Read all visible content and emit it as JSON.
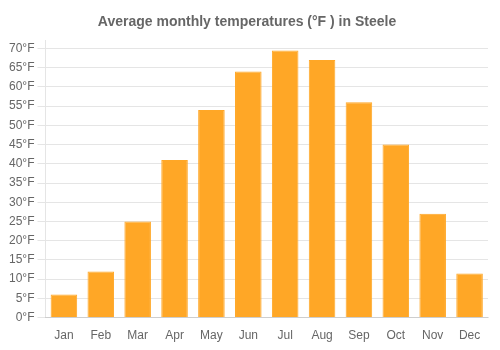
{
  "chart_data": {
    "type": "bar",
    "title": "Average monthly temperatures (°F ) in Steele",
    "categories": [
      "Jan",
      "Feb",
      "Mar",
      "Apr",
      "May",
      "Jun",
      "Jul",
      "Aug",
      "Sep",
      "Oct",
      "Nov",
      "Dec"
    ],
    "values": [
      6,
      12,
      25,
      41,
      54,
      64,
      69.5,
      67,
      56,
      45,
      27,
      11.5
    ],
    "color": "#FFA726",
    "ylim": [
      0,
      72
    ],
    "yticks": [
      {
        "value": 0,
        "label": "0°F"
      },
      {
        "value": 5,
        "label": "5°F"
      },
      {
        "value": 10,
        "label": "10°F"
      },
      {
        "value": 15,
        "label": "15°F"
      },
      {
        "value": 20,
        "label": "20°F"
      },
      {
        "value": 25,
        "label": "25°F"
      },
      {
        "value": 30,
        "label": "30°F"
      },
      {
        "value": 35,
        "label": "35°F"
      },
      {
        "value": 40,
        "label": "40°F"
      },
      {
        "value": 45,
        "label": "45°F"
      },
      {
        "value": 50,
        "label": "50°F"
      },
      {
        "value": 55,
        "label": "55°F"
      },
      {
        "value": 60,
        "label": "60°F"
      },
      {
        "value": 65,
        "label": "65°F"
      },
      {
        "value": 70,
        "label": "70°F"
      }
    ],
    "grid": true
  }
}
